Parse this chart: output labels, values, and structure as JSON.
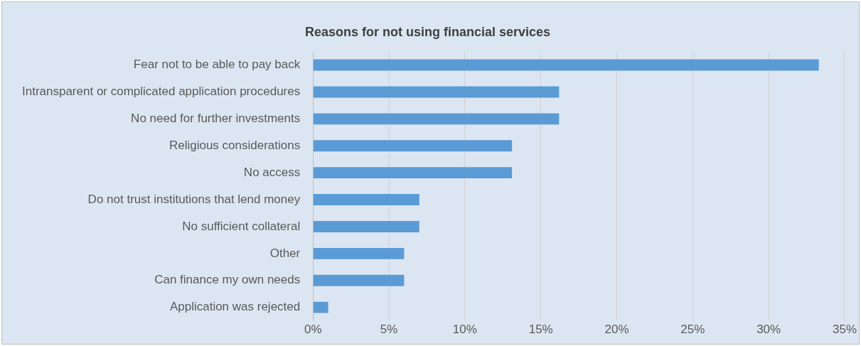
{
  "chart_data": {
    "type": "bar",
    "orientation": "horizontal",
    "title": "Reasons for not using financial services",
    "categories": [
      "Fear not to be able to pay back",
      "Intransparent or complicated application procedures",
      "No need for further investments",
      "Religious considerations",
      "No access",
      "Do not trust institutions that lend money",
      "No sufficient collateral",
      "Other",
      "Can finance my own needs",
      "Application was rejected"
    ],
    "values": [
      33.3,
      16.2,
      16.2,
      13.1,
      13.1,
      7.0,
      7.0,
      6.0,
      6.0,
      1.0
    ],
    "color": "#5b9bd5",
    "xlim": [
      0,
      35
    ],
    "xticks": [
      {
        "value": 0,
        "label": "0%"
      },
      {
        "value": 5,
        "label": "5%"
      },
      {
        "value": 10,
        "label": "10%"
      },
      {
        "value": 15,
        "label": "15%"
      },
      {
        "value": 20,
        "label": "20%"
      },
      {
        "value": 25,
        "label": "25%"
      },
      {
        "value": 30,
        "label": "30%"
      },
      {
        "value": 35,
        "label": "35%"
      }
    ],
    "grid": "x",
    "legend": false
  }
}
